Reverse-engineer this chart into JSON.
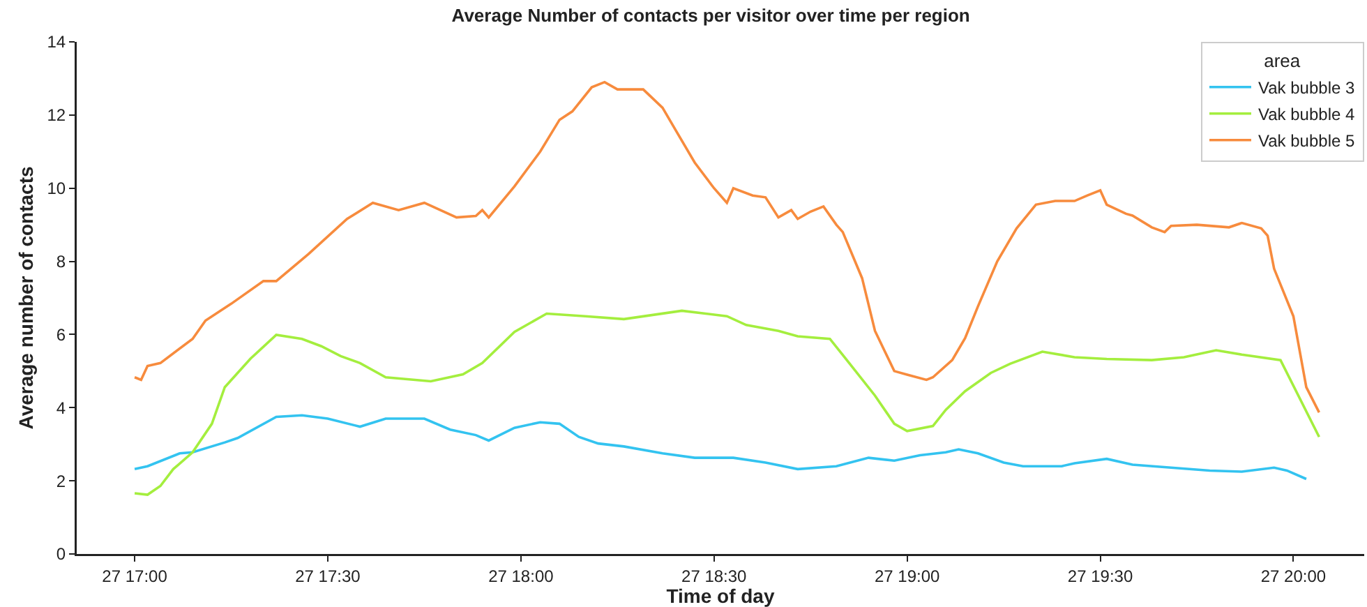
{
  "chart_data": {
    "type": "line",
    "title": "Average Number of contacts per visitor over time per region",
    "xlabel": "Time of day",
    "ylabel": "Average number of contacts",
    "legend_title": "area",
    "legend": "top right",
    "grid": false,
    "xlim": [
      "--01-27T16:51",
      "--01-27T20:11"
    ],
    "xticks": [
      {
        "value": "--01-27T17:00",
        "label": "27 17:00"
      },
      {
        "value": "--01-27T17:30",
        "label": "27 17:30"
      },
      {
        "value": "--01-27T18:00",
        "label": "27 18:00"
      },
      {
        "value": "--01-27T18:30",
        "label": "27 18:30"
      },
      {
        "value": "--01-27T19:00",
        "label": "27 19:00"
      },
      {
        "value": "--01-27T19:30",
        "label": "27 19:30"
      },
      {
        "value": "--01-27T20:00",
        "label": "27 20:00"
      }
    ],
    "ylim": [
      0,
      14
    ],
    "yticks": [
      0,
      2,
      4,
      6,
      8,
      10,
      12,
      14
    ],
    "series": [
      {
        "name": "Vak bubble 3",
        "color": "#33c3f0",
        "x": [
          "--01-27T17:00",
          "--01-27T17:02",
          "--01-27T17:07",
          "--01-27T17:09",
          "--01-27T17:14",
          "--01-27T17:16",
          "--01-27T17:22",
          "--01-27T17:26",
          "--01-27T17:30",
          "--01-27T17:35",
          "--01-27T17:39",
          "--01-27T17:45",
          "--01-27T17:49",
          "--01-27T17:53",
          "--01-27T17:55",
          "--01-27T17:59",
          "--01-27T18:03",
          "--01-27T18:06",
          "--01-27T18:09",
          "--01-27T18:12",
          "--01-27T18:16",
          "--01-27T18:22",
          "--01-27T18:27",
          "--01-27T18:33",
          "--01-27T18:38",
          "--01-27T18:43",
          "--01-27T18:49",
          "--01-27T18:54",
          "--01-27T18:58",
          "--01-27T19:02",
          "--01-27T19:06",
          "--01-27T19:08",
          "--01-27T19:11",
          "--01-27T19:15",
          "--01-27T19:18",
          "--01-27T19:24",
          "--01-27T19:26",
          "--01-27T19:31",
          "--01-27T19:35",
          "--01-27T19:41",
          "--01-27T19:47",
          "--01-27T19:52",
          "--01-27T19:57",
          "--01-27T19:59",
          "--01-27T20:02"
        ],
        "values": [
          2.32,
          2.4,
          2.75,
          2.78,
          3.05,
          3.17,
          3.75,
          3.79,
          3.7,
          3.48,
          3.7,
          3.7,
          3.4,
          3.25,
          3.1,
          3.45,
          3.6,
          3.56,
          3.2,
          3.02,
          2.94,
          2.75,
          2.63,
          2.63,
          2.5,
          2.32,
          2.4,
          2.63,
          2.55,
          2.7,
          2.78,
          2.86,
          2.75,
          2.5,
          2.4,
          2.4,
          2.48,
          2.6,
          2.44,
          2.36,
          2.28,
          2.25,
          2.36,
          2.28,
          2.05
        ]
      },
      {
        "name": "Vak bubble 4",
        "color": "#a4ee3e",
        "x": [
          "--01-27T17:00",
          "--01-27T17:02",
          "--01-27T17:04",
          "--01-27T17:06",
          "--01-27T17:09",
          "--01-27T17:12",
          "--01-27T17:14",
          "--01-27T17:18",
          "--01-27T17:22",
          "--01-27T17:26",
          "--01-27T17:29",
          "--01-27T17:32",
          "--01-27T17:35",
          "--01-27T17:39",
          "--01-27T17:46",
          "--01-27T17:51",
          "--01-27T17:54",
          "--01-27T17:59",
          "--01-27T18:04",
          "--01-27T18:10",
          "--01-27T18:16",
          "--01-27T18:25",
          "--01-27T18:32",
          "--01-27T18:35",
          "--01-27T18:40",
          "--01-27T18:43",
          "--01-27T18:48",
          "--01-27T18:51",
          "--01-27T18:55",
          "--01-27T18:58",
          "--01-27T19:00",
          "--01-27T19:04",
          "--01-27T19:06",
          "--01-27T19:09",
          "--01-27T19:13",
          "--01-27T19:16",
          "--01-27T19:21",
          "--01-27T19:26",
          "--01-27T19:31",
          "--01-27T19:38",
          "--01-27T19:43",
          "--01-27T19:48",
          "--01-27T19:52",
          "--01-27T19:58",
          "--01-27T20:04"
        ],
        "values": [
          1.66,
          1.62,
          1.86,
          2.32,
          2.78,
          3.56,
          4.56,
          5.34,
          5.99,
          5.88,
          5.68,
          5.41,
          5.22,
          4.83,
          4.72,
          4.91,
          5.22,
          6.07,
          6.57,
          6.5,
          6.42,
          6.65,
          6.5,
          6.26,
          6.1,
          5.95,
          5.88,
          5.22,
          4.33,
          3.56,
          3.36,
          3.5,
          3.94,
          4.45,
          4.95,
          5.2,
          5.53,
          5.38,
          5.33,
          5.3,
          5.38,
          5.57,
          5.45,
          5.3,
          3.2
        ]
      },
      {
        "name": "Vak bubble 5",
        "color": "#f78b3d",
        "x": [
          "--01-27T17:00",
          "--01-27T17:01",
          "--01-27T17:02",
          "--01-27T17:04",
          "--01-27T17:09",
          "--01-27T17:11",
          "--01-27T17:15",
          "--01-27T17:20",
          "--01-27T17:22",
          "--01-27T17:27",
          "--01-27T17:33",
          "--01-27T17:37",
          "--01-27T17:41",
          "--01-27T17:45",
          "--01-27T17:50",
          "--01-27T17:53",
          "--01-27T17:54",
          "--01-27T17:55",
          "--01-27T17:59",
          "--01-27T18:03",
          "--01-27T18:06",
          "--01-27T18:08",
          "--01-27T18:11",
          "--01-27T18:13",
          "--01-27T18:15",
          "--01-27T18:19",
          "--01-27T18:22",
          "--01-27T18:24",
          "--01-27T18:27",
          "--01-27T18:30",
          "--01-27T18:32",
          "--01-27T18:33",
          "--01-27T18:36",
          "--01-27T18:38",
          "--01-27T18:40",
          "--01-27T18:42",
          "--01-27T18:43",
          "--01-27T18:45",
          "--01-27T18:47",
          "--01-27T18:49",
          "--01-27T18:50",
          "--01-27T18:53",
          "--01-27T18:55",
          "--01-27T18:58",
          "--01-27T19:00",
          "--01-27T19:03",
          "--01-27T19:04",
          "--01-27T19:07",
          "--01-27T19:09",
          "--01-27T19:11",
          "--01-27T19:14",
          "--01-27T19:17",
          "--01-27T19:20",
          "--01-27T19:23",
          "--01-27T19:26",
          "--01-27T19:28",
          "--01-27T19:30",
          "--01-27T19:31",
          "--01-27T19:34",
          "--01-27T19:35",
          "--01-27T19:38",
          "--01-27T19:40",
          "--01-27T19:41",
          "--01-27T19:45",
          "--01-27T19:50",
          "--01-27T19:52",
          "--01-27T19:55",
          "--01-27T19:56",
          "--01-27T19:57",
          "--01-27T20:00",
          "--01-27T20:02",
          "--01-27T20:04"
        ],
        "values": [
          4.83,
          4.76,
          5.14,
          5.22,
          5.88,
          6.38,
          6.84,
          7.46,
          7.46,
          8.2,
          9.16,
          9.6,
          9.4,
          9.6,
          9.2,
          9.24,
          9.4,
          9.2,
          10.05,
          11.0,
          11.87,
          12.1,
          12.76,
          12.9,
          12.7,
          12.7,
          12.2,
          11.6,
          10.7,
          10.0,
          9.6,
          10.0,
          9.8,
          9.75,
          9.2,
          9.4,
          9.16,
          9.36,
          9.5,
          9.0,
          8.8,
          7.54,
          6.1,
          5.0,
          4.9,
          4.76,
          4.83,
          5.3,
          5.9,
          6.77,
          8.0,
          8.9,
          9.55,
          9.65,
          9.65,
          9.8,
          9.94,
          9.55,
          9.3,
          9.25,
          8.93,
          8.8,
          8.97,
          9.0,
          8.93,
          9.05,
          8.9,
          8.7,
          7.8,
          6.5,
          4.56,
          3.87
        ]
      }
    ]
  }
}
